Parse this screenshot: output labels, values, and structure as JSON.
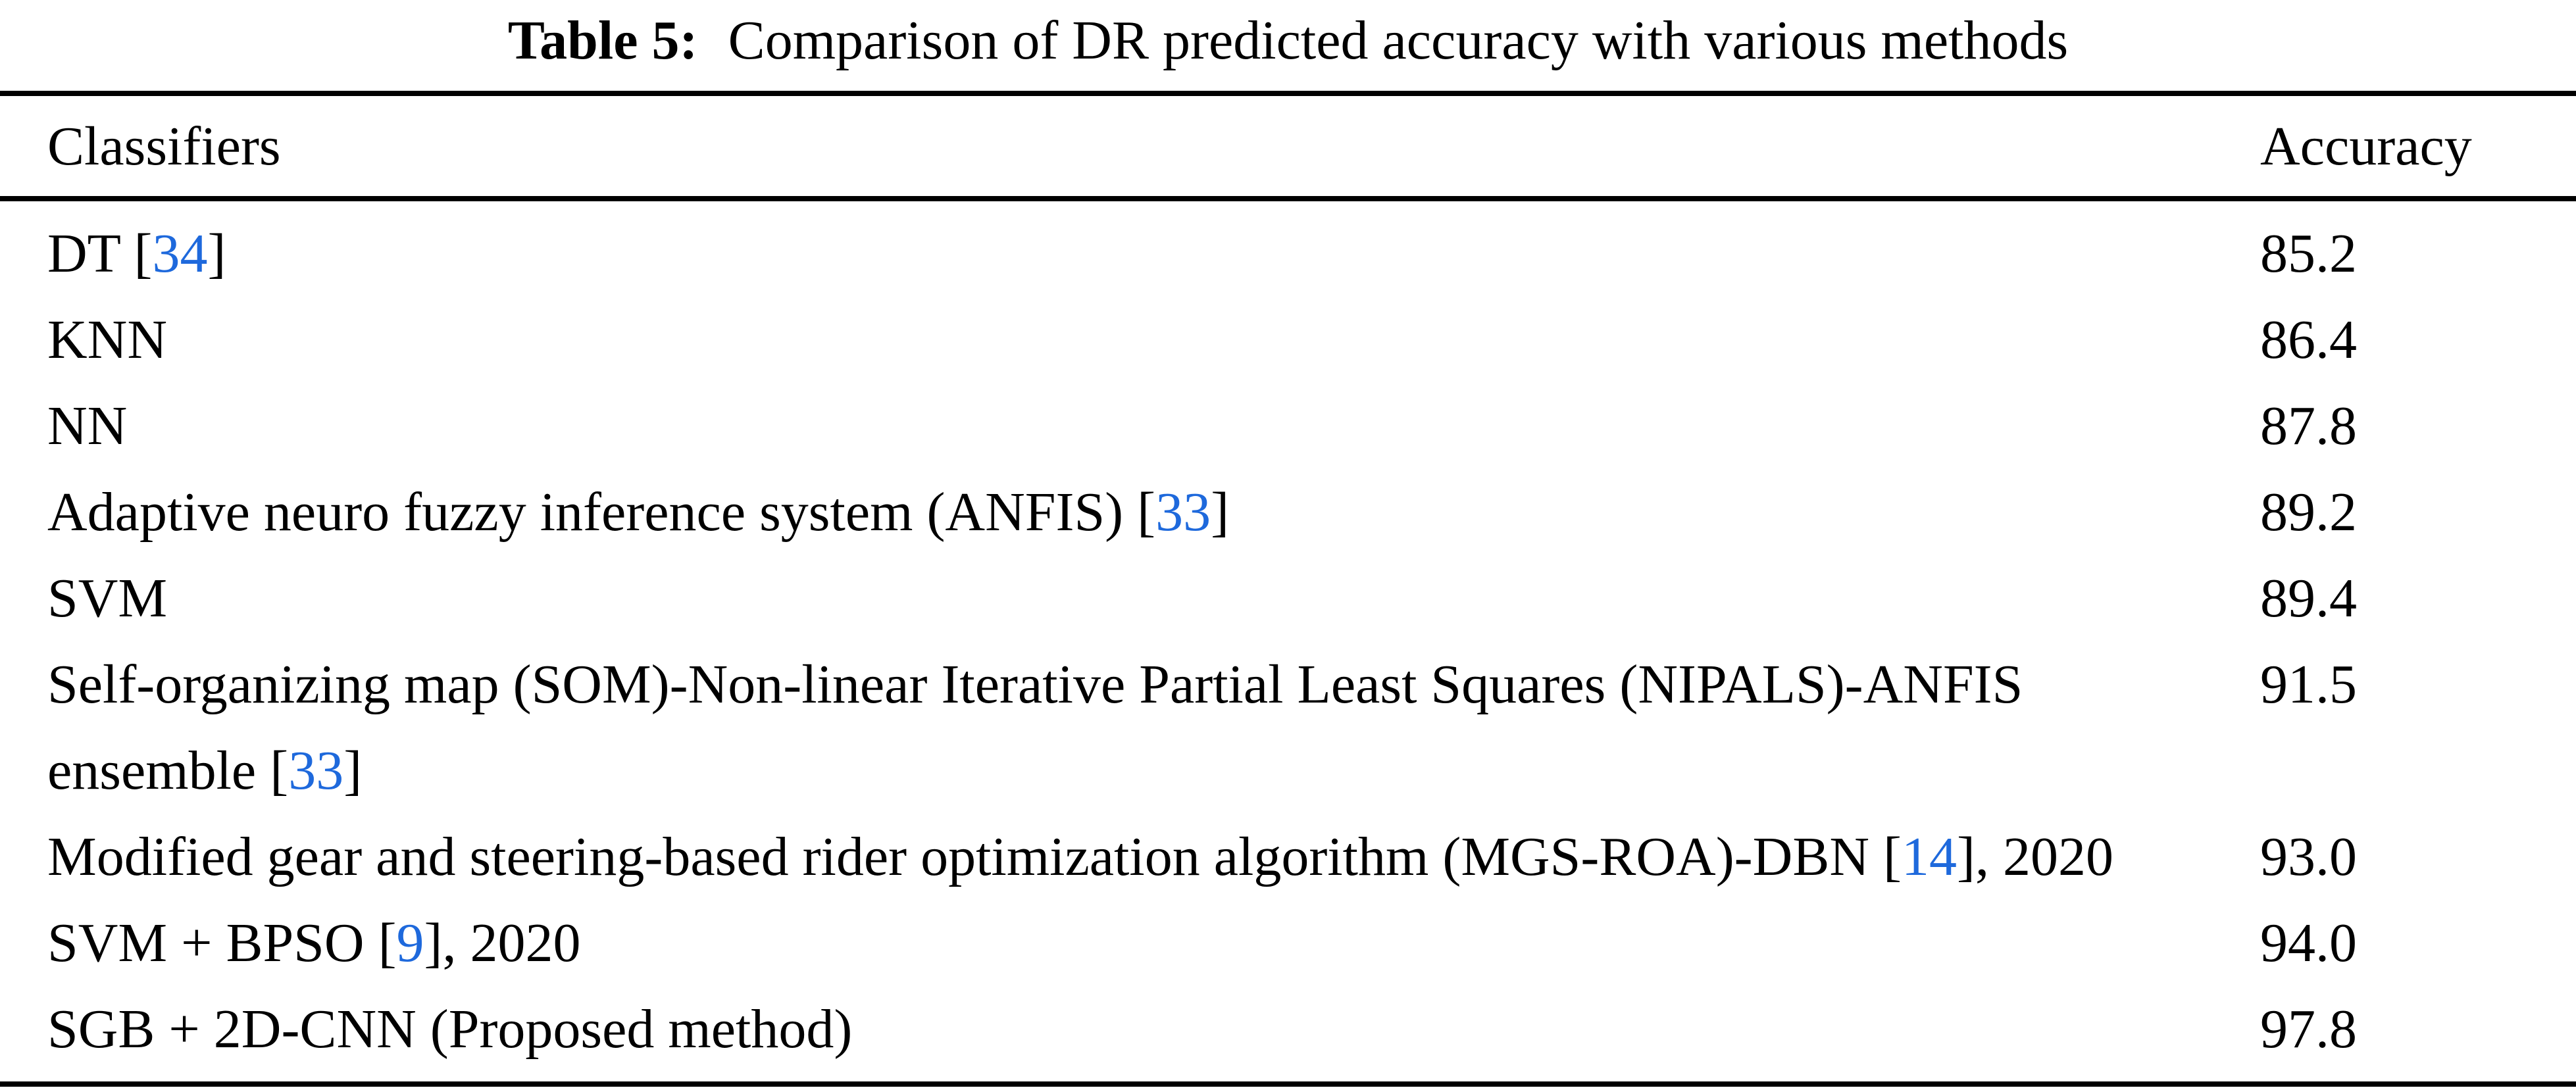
{
  "caption": {
    "prefix": "Table 5:",
    "text": "Comparison of DR predicted accuracy with various methods"
  },
  "table": {
    "columns": [
      "Classifiers",
      "Accuracy"
    ],
    "rows": [
      {
        "classifier": "DT [34]",
        "accuracy": "85.2"
      },
      {
        "classifier": "KNN",
        "accuracy": "86.4"
      },
      {
        "classifier": "NN",
        "accuracy": "87.8"
      },
      {
        "classifier": "Adaptive neuro fuzzy inference system (ANFIS) [33]",
        "accuracy": "89.2"
      },
      {
        "classifier": "SVM",
        "accuracy": "89.4"
      },
      {
        "classifier": "Self-organizing map (SOM)-Non-linear Iterative Partial Least Squares (NIPALS)-ANFIS\nensemble [33]",
        "accuracy": "91.5"
      },
      {
        "classifier": "Modified gear and steering-based rider optimization algorithm (MGS-ROA)-DBN [14], 2020",
        "accuracy": "93.0"
      },
      {
        "classifier": "SVM + BPSO [9], 2020",
        "accuracy": "94.0"
      },
      {
        "classifier": "SGB + 2D-CNN (Proposed method)",
        "accuracy": "97.8"
      }
    ]
  },
  "colors": {
    "citation": "#1E69DC",
    "text": "#000000",
    "background": "#FFFFFF",
    "rule": "#000000"
  }
}
